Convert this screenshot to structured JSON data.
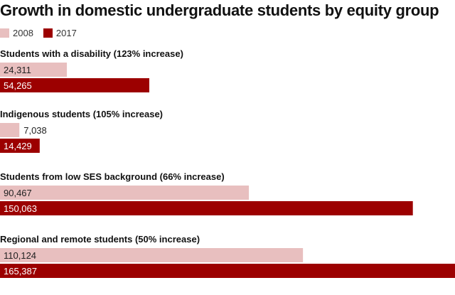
{
  "title": "Growth in domestic undergraduate students by equity group",
  "colors": {
    "2008": "#e8bfbf",
    "2017": "#9c0000",
    "label_dark": "#222222",
    "label_light": "#ffffff"
  },
  "chart_data": {
    "type": "bar",
    "orientation": "horizontal",
    "title": "Growth in domestic undergraduate students by equity group",
    "legend": "top-left",
    "grid": false,
    "xlim": [
      0,
      165387
    ],
    "categories": [
      "Students with a disability (123% increase)",
      "Indigenous students (105% increase)",
      "Students from low SES background (66% increase)",
      "Regional and remote students (50% increase)"
    ],
    "series": [
      {
        "name": "2008",
        "values": [
          24311,
          7038,
          90467,
          110124
        ],
        "labels": [
          "24,311",
          "7,038",
          "90,467",
          "110,124"
        ]
      },
      {
        "name": "2017",
        "values": [
          54265,
          14429,
          150063,
          165387
        ],
        "labels": [
          "54,265",
          "14,429",
          "150,063",
          "165,387"
        ]
      }
    ]
  }
}
